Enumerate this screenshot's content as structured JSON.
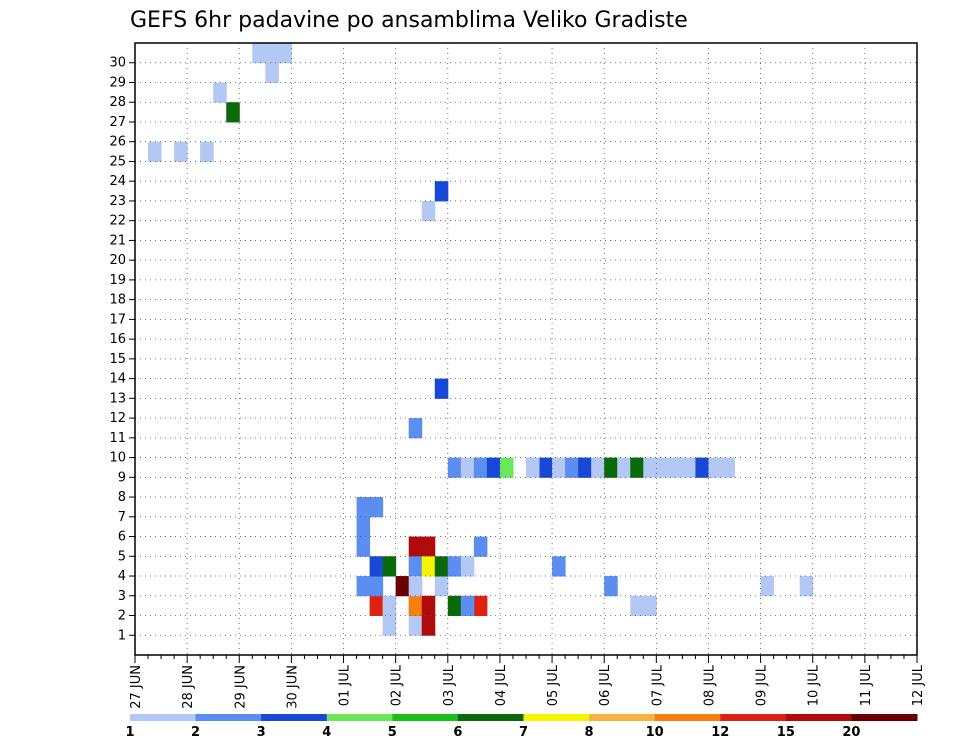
{
  "chart_data": {
    "type": "heatmap",
    "title": "GEFS 6hr padavine po ansamblima Veliko Gradiste",
    "xlabel": "",
    "ylabel": "",
    "x_ticks": [
      "27 JUN",
      "28 JUN",
      "29 JUN",
      "30 JUN",
      "01 JUL",
      "02 JUL",
      "03 JUL",
      "04 JUL",
      "05 JUL",
      "06 JUL",
      "07 JUL",
      "08 JUL",
      "09 JUL",
      "10 JUL",
      "11 JUL",
      "12 JUL"
    ],
    "y_ticks": [
      "1",
      "2",
      "3",
      "4",
      "5",
      "6",
      "7",
      "8",
      "9",
      "10",
      "11",
      "12",
      "13",
      "14",
      "15",
      "16",
      "17",
      "18",
      "19",
      "20",
      "21",
      "22",
      "23",
      "24",
      "25",
      "26",
      "27",
      "28",
      "29",
      "30"
    ],
    "x_steps": 60,
    "steps_per_day": 4,
    "members": 30,
    "grid": true,
    "colorbar": {
      "labels": [
        "1",
        "2",
        "3",
        "4",
        "5",
        "6",
        "7",
        "8",
        "10",
        "12",
        "15",
        "20"
      ],
      "colors": [
        "#b3c8f5",
        "#5b8ef0",
        "#1848d8",
        "#6ae85a",
        "#18c018",
        "#0a6a0a",
        "#f5f500",
        "#f8b040",
        "#f57f10",
        "#e02010",
        "#b00a0a",
        "#6a0000"
      ]
    },
    "cells": [
      [
        1,
        21,
        0
      ],
      [
        2,
        21,
        0
      ],
      [
        3,
        21,
        0
      ],
      [
        11,
        21,
        1
      ],
      [
        13,
        23,
        2
      ],
      [
        22,
        22,
        0
      ],
      [
        23,
        23,
        2
      ],
      [
        25,
        1,
        0
      ],
      [
        25,
        3,
        0
      ],
      [
        25,
        5,
        0
      ],
      [
        27,
        7,
        5
      ],
      [
        28,
        6,
        0
      ],
      [
        29,
        10,
        0
      ],
      [
        30,
        9,
        0
      ],
      [
        30,
        10,
        0
      ],
      [
        30,
        11,
        0
      ],
      [
        1,
        22,
        10
      ],
      [
        1,
        19,
        0
      ],
      [
        2,
        21,
        8
      ],
      [
        2,
        22,
        10
      ],
      [
        2,
        24,
        5
      ],
      [
        2,
        38,
        0
      ],
      [
        2,
        39,
        0
      ],
      [
        3,
        36,
        1
      ],
      [
        3,
        48,
        0
      ],
      [
        3,
        51,
        0
      ],
      [
        3,
        23,
        0
      ],
      [
        4,
        32,
        1
      ],
      [
        5,
        21,
        10
      ],
      [
        5,
        22,
        10
      ],
      [
        5,
        26,
        1
      ],
      [
        2,
        26,
        9
      ],
      [
        2,
        18,
        9
      ],
      [
        2,
        19,
        0
      ],
      [
        2,
        25,
        1
      ],
      [
        3,
        17,
        1
      ],
      [
        3,
        18,
        1
      ],
      [
        4,
        18,
        2
      ],
      [
        5,
        17,
        1
      ],
      [
        6,
        17,
        1
      ],
      [
        7,
        17,
        1
      ],
      [
        7,
        18,
        1
      ],
      [
        3,
        20,
        11
      ],
      [
        4,
        21,
        1
      ],
      [
        3,
        21,
        0
      ],
      [
        4,
        19,
        5
      ],
      [
        4,
        22,
        6
      ],
      [
        4,
        23,
        5
      ],
      [
        4,
        24,
        1
      ],
      [
        4,
        25,
        0
      ],
      [
        9,
        41,
        0
      ],
      [
        9,
        42,
        0
      ],
      [
        9,
        43,
        2
      ],
      [
        9,
        44,
        0
      ],
      [
        9,
        45,
        0
      ],
      [
        9,
        31,
        2
      ],
      [
        9,
        24,
        1
      ],
      [
        9,
        25,
        0
      ],
      [
        9,
        26,
        1
      ],
      [
        9,
        27,
        2
      ],
      [
        9,
        28,
        3
      ],
      [
        9,
        30,
        0
      ],
      [
        9,
        32,
        0
      ],
      [
        9,
        33,
        1
      ],
      [
        9,
        34,
        2
      ],
      [
        9,
        35,
        0
      ],
      [
        9,
        36,
        5
      ],
      [
        9,
        37,
        0
      ],
      [
        9,
        38,
        5
      ],
      [
        9,
        39,
        0
      ],
      [
        9,
        40,
        0
      ]
    ],
    "cell_note": "cells are [member, step, colorIndex]"
  }
}
